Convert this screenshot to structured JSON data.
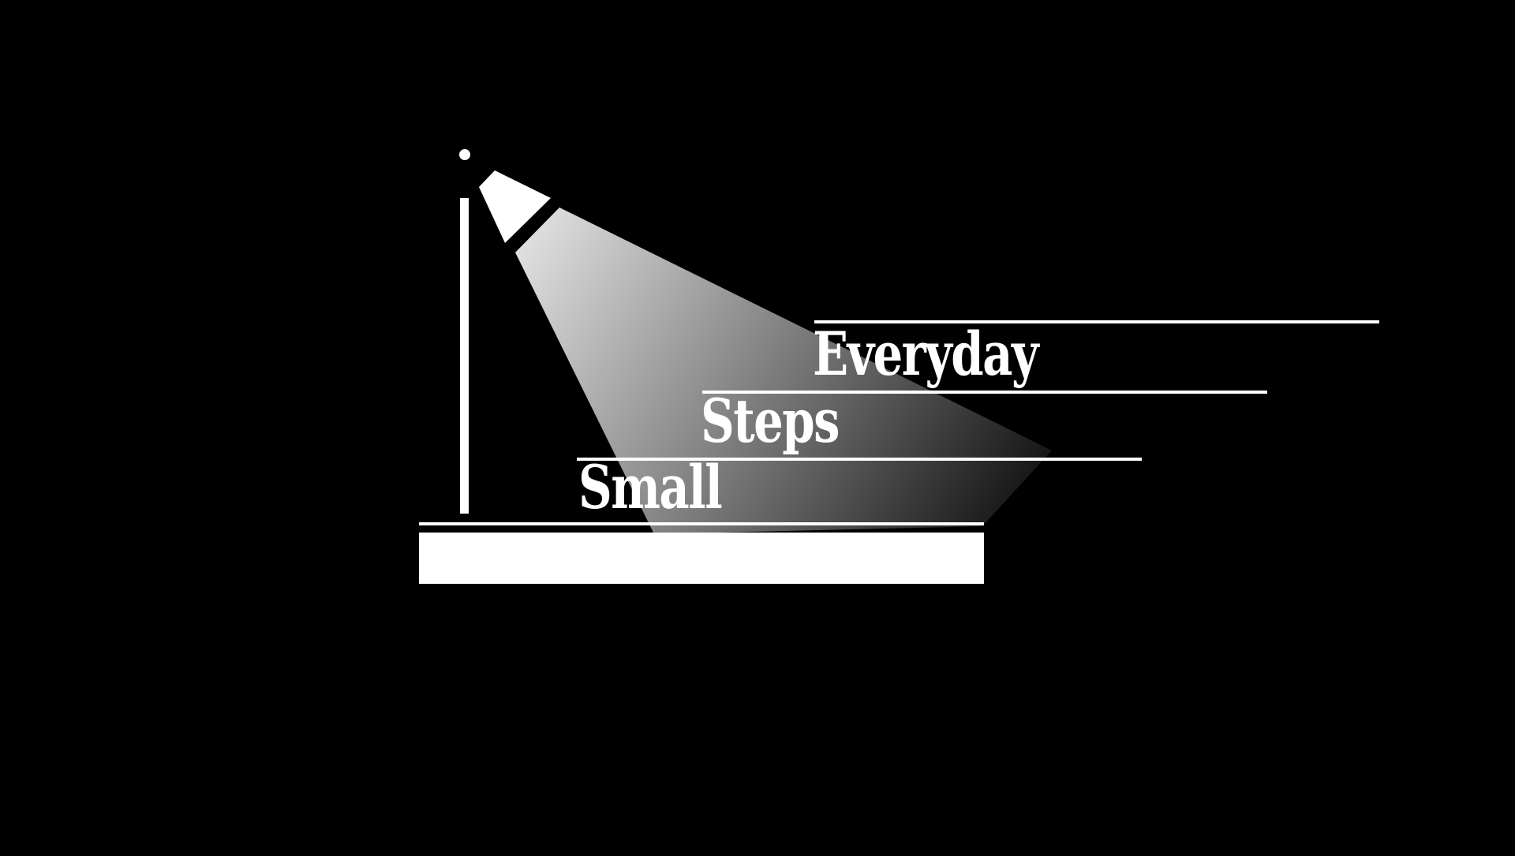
{
  "background_color": "#000000",
  "foreground_color": "#ffffff",
  "steps": [
    {
      "label": "Everyday"
    },
    {
      "label": "Steps"
    },
    {
      "label": "Small"
    }
  ],
  "lamp": {
    "light_gradient_start": "#ffffff",
    "light_gradient_end": "#1a1a1a"
  }
}
